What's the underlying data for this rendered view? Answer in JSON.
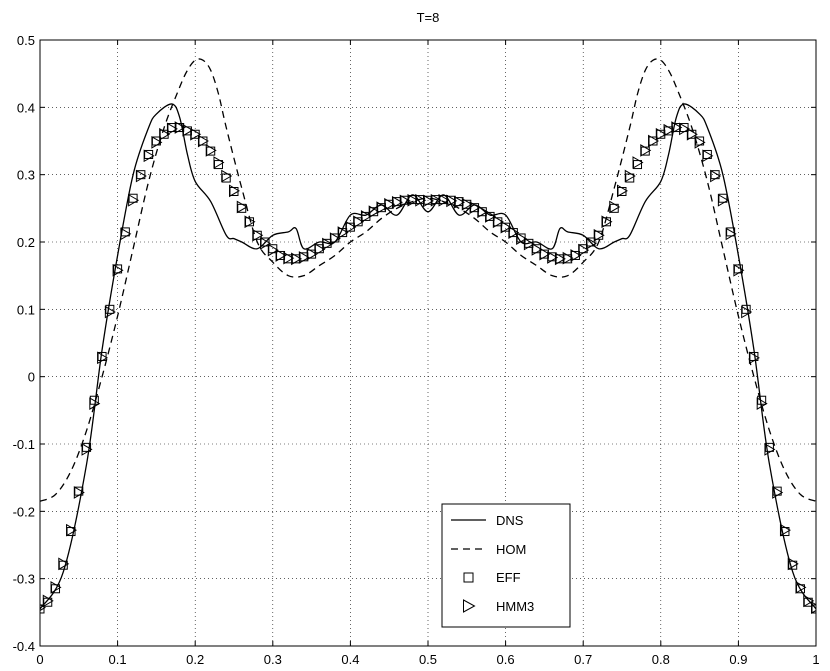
{
  "chart_data": {
    "type": "line",
    "title": "T=8",
    "xlabel": "",
    "ylabel": "",
    "xlim": [
      0,
      1
    ],
    "ylim": [
      -0.4,
      0.5
    ],
    "x_ticks": [
      "0",
      "0.1",
      "0.2",
      "0.3",
      "0.4",
      "0.5",
      "0.6",
      "0.7",
      "0.8",
      "0.9",
      "1"
    ],
    "y_ticks": [
      "-0.4",
      "-0.3",
      "-0.2",
      "-0.1",
      "0",
      "0.1",
      "0.2",
      "0.3",
      "0.4",
      "0.5"
    ],
    "grid": true,
    "legend_position": "bottom-center",
    "series": [
      {
        "name": "DNS",
        "style": "solid",
        "x": [
          0.0,
          0.03,
          0.06,
          0.08,
          0.1,
          0.12,
          0.14,
          0.15,
          0.17,
          0.18,
          0.19,
          0.2,
          0.22,
          0.24,
          0.25,
          0.26,
          0.28,
          0.3,
          0.32,
          0.33,
          0.34,
          0.36,
          0.38,
          0.4,
          0.42,
          0.44,
          0.46,
          0.48,
          0.5,
          0.52,
          0.54,
          0.56,
          0.58,
          0.6,
          0.62,
          0.64,
          0.66,
          0.67,
          0.68,
          0.7,
          0.72,
          0.74,
          0.75,
          0.76,
          0.78,
          0.8,
          0.81,
          0.82,
          0.83,
          0.85,
          0.86,
          0.88,
          0.9,
          0.92,
          0.94,
          0.97,
          1.0
        ],
        "y": [
          -0.345,
          -0.29,
          -0.13,
          0.04,
          0.18,
          0.3,
          0.37,
          0.39,
          0.405,
          0.385,
          0.33,
          0.29,
          0.26,
          0.21,
          0.205,
          0.2,
          0.19,
          0.21,
          0.215,
          0.22,
          0.19,
          0.2,
          0.2,
          0.24,
          0.24,
          0.255,
          0.24,
          0.27,
          0.245,
          0.27,
          0.24,
          0.255,
          0.24,
          0.24,
          0.2,
          0.2,
          0.19,
          0.22,
          0.215,
          0.21,
          0.19,
          0.2,
          0.205,
          0.21,
          0.26,
          0.29,
          0.33,
          0.385,
          0.405,
          0.39,
          0.37,
          0.3,
          0.18,
          0.04,
          -0.13,
          -0.29,
          -0.345
        ]
      },
      {
        "name": "HOM",
        "style": "dashed",
        "x": [
          0.0,
          0.02,
          0.04,
          0.06,
          0.08,
          0.1,
          0.12,
          0.14,
          0.16,
          0.18,
          0.19,
          0.2,
          0.21,
          0.22,
          0.23,
          0.24,
          0.26,
          0.28,
          0.3,
          0.32,
          0.34,
          0.36,
          0.38,
          0.4,
          0.42,
          0.44,
          0.46,
          0.48,
          0.5,
          0.52,
          0.54,
          0.56,
          0.58,
          0.6,
          0.62,
          0.64,
          0.66,
          0.68,
          0.7,
          0.72,
          0.74,
          0.76,
          0.77,
          0.78,
          0.79,
          0.8,
          0.81,
          0.82,
          0.84,
          0.86,
          0.88,
          0.9,
          0.92,
          0.94,
          0.96,
          0.98,
          1.0
        ],
        "y": [
          -0.185,
          -0.175,
          -0.14,
          -0.08,
          0.0,
          0.09,
          0.19,
          0.29,
          0.37,
          0.43,
          0.455,
          0.47,
          0.47,
          0.455,
          0.42,
          0.37,
          0.28,
          0.2,
          0.17,
          0.15,
          0.15,
          0.165,
          0.18,
          0.2,
          0.215,
          0.235,
          0.25,
          0.26,
          0.265,
          0.26,
          0.25,
          0.235,
          0.215,
          0.2,
          0.18,
          0.165,
          0.15,
          0.15,
          0.17,
          0.2,
          0.28,
          0.37,
          0.42,
          0.455,
          0.47,
          0.47,
          0.455,
          0.43,
          0.37,
          0.29,
          0.19,
          0.09,
          0.0,
          -0.08,
          -0.14,
          -0.175,
          -0.185
        ]
      },
      {
        "name": "EFF",
        "style": "square-markers",
        "x": [
          0.0,
          0.01,
          0.02,
          0.03,
          0.04,
          0.05,
          0.06,
          0.07,
          0.08,
          0.09,
          0.1,
          0.11,
          0.12,
          0.13,
          0.14,
          0.15,
          0.16,
          0.17,
          0.18,
          0.19,
          0.2,
          0.21,
          0.22,
          0.23,
          0.24,
          0.25,
          0.26,
          0.27,
          0.28,
          0.29,
          0.3,
          0.31,
          0.32,
          0.33,
          0.34,
          0.35,
          0.36,
          0.37,
          0.38,
          0.39,
          0.4,
          0.41,
          0.42,
          0.43,
          0.44,
          0.45,
          0.46,
          0.47,
          0.48,
          0.49,
          0.5,
          0.51,
          0.52,
          0.53,
          0.54,
          0.55,
          0.56,
          0.57,
          0.58,
          0.59,
          0.6,
          0.61,
          0.62,
          0.63,
          0.64,
          0.65,
          0.66,
          0.67,
          0.68,
          0.69,
          0.7,
          0.71,
          0.72,
          0.73,
          0.74,
          0.75,
          0.76,
          0.77,
          0.78,
          0.79,
          0.8,
          0.81,
          0.82,
          0.83,
          0.84,
          0.85,
          0.86,
          0.87,
          0.88,
          0.89,
          0.9,
          0.91,
          0.92,
          0.93,
          0.94,
          0.95,
          0.96,
          0.97,
          0.98,
          0.99,
          1.0
        ],
        "y": [
          -0.345,
          -0.335,
          -0.315,
          -0.28,
          -0.23,
          -0.17,
          -0.105,
          -0.035,
          0.03,
          0.1,
          0.16,
          0.215,
          0.265,
          0.3,
          0.33,
          0.35,
          0.36,
          0.37,
          0.37,
          0.365,
          0.36,
          0.35,
          0.335,
          0.315,
          0.295,
          0.275,
          0.25,
          0.23,
          0.21,
          0.2,
          0.19,
          0.18,
          0.175,
          0.175,
          0.178,
          0.182,
          0.19,
          0.198,
          0.206,
          0.214,
          0.222,
          0.23,
          0.238,
          0.245,
          0.251,
          0.256,
          0.26,
          0.262,
          0.263,
          0.263,
          0.262,
          0.263,
          0.263,
          0.262,
          0.26,
          0.256,
          0.251,
          0.245,
          0.238,
          0.23,
          0.222,
          0.214,
          0.206,
          0.198,
          0.19,
          0.182,
          0.178,
          0.175,
          0.175,
          0.18,
          0.19,
          0.2,
          0.21,
          0.23,
          0.25,
          0.275,
          0.295,
          0.315,
          0.335,
          0.35,
          0.36,
          0.365,
          0.37,
          0.37,
          0.36,
          0.35,
          0.33,
          0.3,
          0.265,
          0.215,
          0.16,
          0.1,
          0.03,
          -0.035,
          -0.105,
          -0.17,
          -0.23,
          -0.28,
          -0.315,
          -0.335,
          -0.345
        ]
      },
      {
        "name": "HMM3",
        "style": "triangle-markers",
        "x": [
          0.0,
          0.01,
          0.02,
          0.03,
          0.04,
          0.05,
          0.06,
          0.07,
          0.08,
          0.09,
          0.1,
          0.11,
          0.12,
          0.13,
          0.14,
          0.15,
          0.16,
          0.17,
          0.18,
          0.19,
          0.2,
          0.21,
          0.22,
          0.23,
          0.24,
          0.25,
          0.26,
          0.27,
          0.28,
          0.29,
          0.3,
          0.31,
          0.32,
          0.33,
          0.34,
          0.35,
          0.36,
          0.37,
          0.38,
          0.39,
          0.4,
          0.41,
          0.42,
          0.43,
          0.44,
          0.45,
          0.46,
          0.47,
          0.48,
          0.49,
          0.5,
          0.51,
          0.52,
          0.53,
          0.54,
          0.55,
          0.56,
          0.57,
          0.58,
          0.59,
          0.6,
          0.61,
          0.62,
          0.63,
          0.64,
          0.65,
          0.66,
          0.67,
          0.68,
          0.69,
          0.7,
          0.71,
          0.72,
          0.73,
          0.74,
          0.75,
          0.76,
          0.77,
          0.78,
          0.79,
          0.8,
          0.81,
          0.82,
          0.83,
          0.84,
          0.85,
          0.86,
          0.87,
          0.88,
          0.89,
          0.9,
          0.91,
          0.92,
          0.93,
          0.94,
          0.95,
          0.96,
          0.97,
          0.98,
          0.99,
          1.0
        ],
        "y": [
          -0.343,
          -0.333,
          -0.313,
          -0.278,
          -0.228,
          -0.172,
          -0.108,
          -0.04,
          0.028,
          0.096,
          0.158,
          0.212,
          0.262,
          0.298,
          0.328,
          0.348,
          0.36,
          0.368,
          0.37,
          0.366,
          0.36,
          0.35,
          0.336,
          0.318,
          0.298,
          0.276,
          0.252,
          0.23,
          0.21,
          0.198,
          0.188,
          0.18,
          0.176,
          0.175,
          0.177,
          0.182,
          0.189,
          0.197,
          0.205,
          0.214,
          0.222,
          0.23,
          0.238,
          0.245,
          0.251,
          0.256,
          0.259,
          0.261,
          0.262,
          0.262,
          0.261,
          0.262,
          0.262,
          0.261,
          0.259,
          0.256,
          0.251,
          0.245,
          0.238,
          0.23,
          0.222,
          0.214,
          0.205,
          0.197,
          0.189,
          0.182,
          0.177,
          0.175,
          0.176,
          0.18,
          0.188,
          0.198,
          0.21,
          0.23,
          0.252,
          0.276,
          0.298,
          0.318,
          0.336,
          0.35,
          0.36,
          0.366,
          0.37,
          0.368,
          0.36,
          0.348,
          0.328,
          0.298,
          0.262,
          0.212,
          0.158,
          0.096,
          0.028,
          -0.04,
          -0.108,
          -0.172,
          -0.228,
          -0.278,
          -0.313,
          -0.333,
          -0.343
        ]
      }
    ]
  }
}
